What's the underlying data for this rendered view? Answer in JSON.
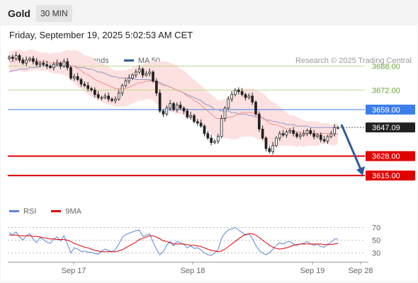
{
  "header": {
    "title": "Gold",
    "timeframe": "30 MIN"
  },
  "date_line": "Friday, September 19, 2025 5:02:53 AM CET",
  "legend": {
    "items": [
      {
        "label": "MA 20 + Bollinger Bands",
        "color": "#f2a09a"
      },
      {
        "label": "MA 50",
        "color": "#2f5a9a"
      }
    ],
    "credit": "Research © 2025 Trading Central"
  },
  "rsi_legend": {
    "items": [
      {
        "label": "RSI",
        "color": "#5b86d6"
      },
      {
        "label": "9MA",
        "color": "#e00000"
      }
    ]
  },
  "colors": {
    "bb_fill": "#fde0e0",
    "resistance": "#bcd98a",
    "pivot": "#3b7de9",
    "support": "#e00000",
    "candle": "#222222",
    "ma20": "#f08f88",
    "ma50": "#8e96c8",
    "arrow": "#2f5a9a"
  },
  "chart_data": [
    {
      "type": "candlestick",
      "ylim": [
        3605,
        3712
      ],
      "x_labels": [
        "Sep 17",
        "Sep 18",
        "Sep 19",
        "Sep 28"
      ],
      "levels": [
        {
          "value": 3688.0,
          "label": "3688.00",
          "kind": "resistance"
        },
        {
          "value": 3672.0,
          "label": "3672.00",
          "kind": "resistance"
        },
        {
          "value": 3659.0,
          "label": "3659.00",
          "kind": "pivot"
        },
        {
          "value": 3647.09,
          "label": "3647.09",
          "kind": "last_price"
        },
        {
          "value": 3628.0,
          "label": "3628.00",
          "kind": "support"
        },
        {
          "value": 3615.0,
          "label": "3615.00",
          "kind": "support"
        }
      ],
      "forecast_arrow": {
        "from": 3649,
        "to": 3616
      },
      "close": [
        3694,
        3693,
        3695,
        3692,
        3690,
        3692,
        3693,
        3691,
        3689,
        3690,
        3689,
        3688,
        3687,
        3689,
        3690,
        3688,
        3691,
        3687,
        3680,
        3681,
        3679,
        3676,
        3675,
        3673,
        3672,
        3669,
        3667,
        3667,
        3668,
        3666,
        3665,
        3666,
        3670,
        3675,
        3678,
        3680,
        3682,
        3684,
        3686,
        3682,
        3683,
        3684,
        3678,
        3670,
        3658,
        3656,
        3660,
        3663,
        3659,
        3662,
        3660,
        3658,
        3654,
        3655,
        3651,
        3650,
        3648,
        3643,
        3640,
        3637,
        3638,
        3641,
        3653,
        3660,
        3666,
        3669,
        3672,
        3671,
        3669,
        3667,
        3668,
        3664,
        3656,
        3646,
        3640,
        3633,
        3631,
        3635,
        3640,
        3643,
        3642,
        3644,
        3645,
        3643,
        3641,
        3642,
        3643,
        3645,
        3643,
        3641,
        3642,
        3639,
        3638,
        3641,
        3643,
        3647,
        3647
      ],
      "ma20": [
        3691,
        3691,
        3692,
        3692,
        3691,
        3691,
        3692,
        3692,
        3692,
        3691,
        3691,
        3691,
        3690,
        3690,
        3690,
        3690,
        3690,
        3690,
        3688,
        3688,
        3686,
        3685,
        3683,
        3682,
        3681,
        3679,
        3678,
        3677,
        3676,
        3675,
        3674,
        3673,
        3673,
        3673,
        3673,
        3674,
        3675,
        3676,
        3677,
        3677,
        3678,
        3678,
        3678,
        3677,
        3676,
        3675,
        3675,
        3674,
        3673,
        3672,
        3671,
        3670,
        3668,
        3667,
        3665,
        3664,
        3662,
        3660,
        3658,
        3656,
        3654,
        3653,
        3653,
        3653,
        3654,
        3654,
        3655,
        3656,
        3657,
        3657,
        3657,
        3657,
        3656,
        3655,
        3654,
        3652,
        3650,
        3649,
        3649,
        3648,
        3647,
        3646,
        3645,
        3645,
        3644,
        3644,
        3643,
        3643,
        3643,
        3643,
        3643,
        3643,
        3643,
        3643,
        3642,
        3642,
        3643
      ],
      "ma50": [
        3684,
        3685,
        3685,
        3686,
        3686,
        3686,
        3687,
        3687,
        3687,
        3688,
        3688,
        3688,
        3688,
        3688,
        3688,
        3688,
        3688,
        3688,
        3688,
        3688,
        3687,
        3687,
        3687,
        3686,
        3686,
        3685,
        3684,
        3684,
        3683,
        3682,
        3681,
        3681,
        3680,
        3680,
        3680,
        3680,
        3680,
        3679,
        3679,
        3679,
        3679,
        3679,
        3678,
        3678,
        3677,
        3676,
        3675,
        3674,
        3673,
        3672,
        3671,
        3670,
        3669,
        3668,
        3667,
        3666,
        3665,
        3663,
        3662,
        3661,
        3659,
        3659,
        3658,
        3658,
        3658,
        3657,
        3657,
        3656,
        3656,
        3656,
        3655,
        3655,
        3654,
        3654,
        3653,
        3652,
        3652,
        3651,
        3651,
        3650,
        3650,
        3649,
        3649,
        3649,
        3648,
        3648,
        3648,
        3648,
        3647,
        3647,
        3647,
        3647,
        3647,
        3647,
        3647,
        3647,
        3647
      ],
      "bb_width": [
        7,
        7,
        7,
        7,
        7,
        7,
        7,
        7,
        6,
        6,
        6,
        6,
        6,
        7,
        7,
        7,
        8,
        9,
        10,
        11,
        12,
        12,
        12,
        13,
        13,
        13,
        13,
        13,
        13,
        13,
        12,
        12,
        12,
        12,
        12,
        12,
        12,
        12,
        12,
        12,
        12,
        12,
        13,
        14,
        15,
        16,
        16,
        16,
        16,
        16,
        15,
        15,
        15,
        14,
        14,
        13,
        13,
        13,
        13,
        13,
        13,
        12,
        12,
        13,
        14,
        15,
        16,
        16,
        16,
        16,
        16,
        16,
        16,
        16,
        16,
        16,
        15,
        15,
        14,
        13,
        12,
        11,
        10,
        10,
        10,
        9,
        9,
        8,
        8,
        8,
        8,
        7,
        7,
        7,
        7,
        7,
        7
      ]
    },
    {
      "type": "line",
      "ylim": [
        22,
        80
      ],
      "y_ticks": [
        70,
        50,
        30
      ],
      "series": [
        {
          "name": "RSI",
          "values": [
            62,
            58,
            63,
            55,
            50,
            57,
            60,
            52,
            46,
            54,
            51,
            47,
            45,
            52,
            55,
            49,
            57,
            44,
            30,
            38,
            36,
            32,
            33,
            31,
            31,
            29,
            28,
            33,
            36,
            34,
            32,
            35,
            44,
            54,
            59,
            61,
            63,
            65,
            66,
            56,
            58,
            60,
            47,
            36,
            27,
            32,
            42,
            48,
            41,
            48,
            46,
            43,
            38,
            41,
            37,
            38,
            35,
            30,
            27,
            26,
            30,
            35,
            53,
            61,
            66,
            68,
            70,
            66,
            62,
            58,
            60,
            53,
            42,
            34,
            30,
            27,
            30,
            36,
            42,
            46,
            44,
            47,
            48,
            44,
            42,
            44,
            45,
            48,
            44,
            42,
            44,
            40,
            39,
            44,
            46,
            52,
            52
          ]
        },
        {
          "name": "9MA",
          "values": [
            58,
            58,
            58,
            57,
            57,
            57,
            57,
            56,
            56,
            55,
            54,
            53,
            52,
            52,
            51,
            51,
            51,
            50,
            48,
            45,
            43,
            41,
            39,
            38,
            36,
            34,
            33,
            32,
            32,
            32,
            32,
            32,
            33,
            35,
            38,
            41,
            44,
            47,
            51,
            53,
            55,
            57,
            57,
            55,
            52,
            49,
            48,
            46,
            44,
            44,
            44,
            44,
            43,
            42,
            42,
            41,
            40,
            38,
            36,
            34,
            33,
            32,
            33,
            36,
            40,
            44,
            48,
            52,
            56,
            59,
            60,
            60,
            58,
            54,
            50,
            46,
            42,
            39,
            37,
            36,
            37,
            38,
            40,
            42,
            43,
            44,
            44,
            44,
            44,
            44,
            44,
            44,
            43,
            43,
            43,
            44,
            45
          ]
        }
      ]
    }
  ]
}
